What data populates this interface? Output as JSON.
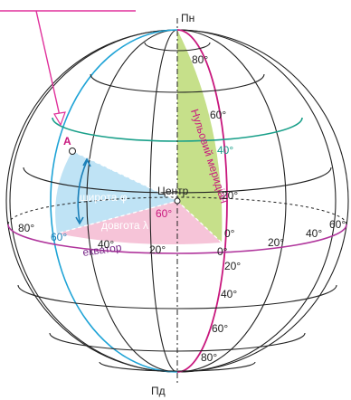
{
  "north_pole": "Пн",
  "south_pole": "Пд",
  "center": "Центр",
  "point": "A",
  "prime_meridian": "Нульовий меридіан",
  "equator": "екватор",
  "latitude": {
    "angle": "40°",
    "label": "широта φ"
  },
  "longitude": {
    "angle": "60°",
    "label": "довгота λ"
  },
  "parallel_labels": [
    "80°",
    "60°",
    "40°",
    "20°",
    "0°",
    "20°",
    "40°",
    "60°",
    "80°"
  ],
  "meridian_labels": [
    "80°",
    "60°",
    "40°",
    "20°",
    "0°",
    "20°",
    "40°",
    "60°"
  ]
}
